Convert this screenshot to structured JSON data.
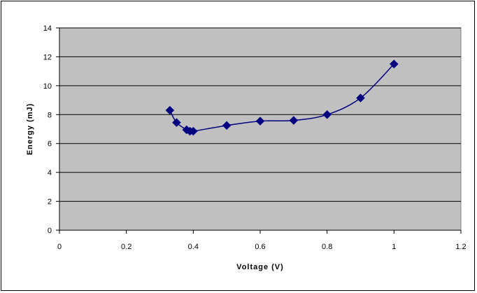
{
  "chart_data": {
    "type": "scatter",
    "title": "",
    "xlabel": "Voltage (V)",
    "ylabel": "Energy (mJ)",
    "xlim": [
      0,
      1.2
    ],
    "ylim": [
      0,
      14
    ],
    "x_ticks": [
      "0",
      "0.2",
      "0.4",
      "0.6",
      "0.8",
      "1",
      "1.2"
    ],
    "y_ticks": [
      "0",
      "2",
      "4",
      "6",
      "8",
      "10",
      "12",
      "14"
    ],
    "grid": "horizontal",
    "legend": "none",
    "series": [
      {
        "marker": "diamond",
        "smoothed_line": true,
        "color": "#000080",
        "x": [
          0.33,
          0.35,
          0.38,
          0.39,
          0.4,
          0.5,
          0.6,
          0.7,
          0.8,
          0.9,
          1.0
        ],
        "y": [
          8.3,
          7.45,
          6.95,
          6.85,
          6.85,
          7.25,
          7.55,
          7.6,
          8.0,
          9.15,
          11.5
        ]
      }
    ],
    "colors": {
      "plot_background": "#c0c0c0",
      "gridline": "#000000",
      "series": "#000080"
    }
  }
}
